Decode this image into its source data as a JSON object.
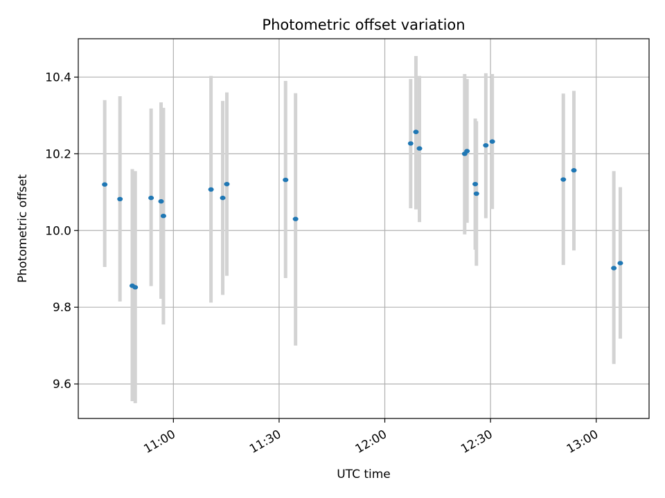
{
  "chart_data": {
    "type": "scatter",
    "title": "Photometric offset variation",
    "xlabel": "UTC time",
    "ylabel": "Photometric offset",
    "x_ticks": [
      "11:00",
      "11:30",
      "12:00",
      "12:30",
      "13:00"
    ],
    "y_ticks": [
      "9.6",
      "9.8",
      "10.0",
      "10.2",
      "10.4"
    ],
    "xlim": [
      "10:33",
      "13:15"
    ],
    "ylim": [
      9.51,
      10.5
    ],
    "grid": true,
    "colors": {
      "point": "#1f77b4",
      "errorbar": "#d3d3d3",
      "grid": "#b0b0b0"
    },
    "points": [
      {
        "x": "10:40:30",
        "y": 10.12,
        "lo": 9.905,
        "hi": 10.34
      },
      {
        "x": "10:44:50",
        "y": 10.082,
        "lo": 9.815,
        "hi": 10.35
      },
      {
        "x": "10:48:20",
        "y": 9.856,
        "lo": 9.555,
        "hi": 10.16
      },
      {
        "x": "10:49:10",
        "y": 9.852,
        "lo": 9.55,
        "hi": 10.155
      },
      {
        "x": "10:53:40",
        "y": 10.085,
        "lo": 9.855,
        "hi": 10.318
      },
      {
        "x": "10:56:30",
        "y": 10.076,
        "lo": 9.822,
        "hi": 10.334
      },
      {
        "x": "10:57:10",
        "y": 10.038,
        "lo": 9.755,
        "hi": 10.32
      },
      {
        "x": "11:10:40",
        "y": 10.107,
        "lo": 9.812,
        "hi": 10.403
      },
      {
        "x": "11:14:00",
        "y": 10.085,
        "lo": 9.832,
        "hi": 10.338
      },
      {
        "x": "11:15:10",
        "y": 10.121,
        "lo": 9.882,
        "hi": 10.36
      },
      {
        "x": "11:31:50",
        "y": 10.132,
        "lo": 9.876,
        "hi": 10.39
      },
      {
        "x": "11:34:40",
        "y": 10.03,
        "lo": 9.7,
        "hi": 10.358
      },
      {
        "x": "12:07:20",
        "y": 10.227,
        "lo": 10.058,
        "hi": 10.395
      },
      {
        "x": "12:08:50",
        "y": 10.257,
        "lo": 10.055,
        "hi": 10.455
      },
      {
        "x": "12:09:50",
        "y": 10.214,
        "lo": 10.022,
        "hi": 10.403
      },
      {
        "x": "12:22:40",
        "y": 10.2,
        "lo": 9.99,
        "hi": 10.408
      },
      {
        "x": "12:23:20",
        "y": 10.207,
        "lo": 10.02,
        "hi": 10.395
      },
      {
        "x": "12:25:40",
        "y": 10.121,
        "lo": 9.95,
        "hi": 10.292
      },
      {
        "x": "12:26:00",
        "y": 10.096,
        "lo": 9.908,
        "hi": 10.285
      },
      {
        "x": "12:28:40",
        "y": 10.222,
        "lo": 10.032,
        "hi": 10.41
      },
      {
        "x": "12:30:30",
        "y": 10.232,
        "lo": 10.056,
        "hi": 10.408
      },
      {
        "x": "12:50:40",
        "y": 10.133,
        "lo": 9.91,
        "hi": 10.357
      },
      {
        "x": "12:53:40",
        "y": 10.157,
        "lo": 9.948,
        "hi": 10.364
      },
      {
        "x": "13:05:00",
        "y": 9.902,
        "lo": 9.652,
        "hi": 10.155
      },
      {
        "x": "13:06:50",
        "y": 9.915,
        "lo": 9.718,
        "hi": 10.113
      }
    ]
  }
}
